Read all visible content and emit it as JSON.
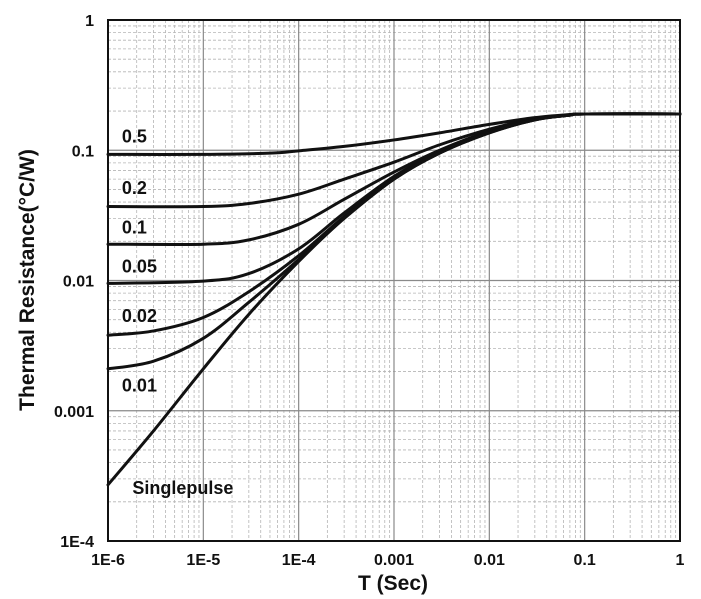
{
  "chart_data": {
    "type": "line",
    "title": "",
    "xlabel": "T (Sec)",
    "ylabel": "Thermal Resistance(°C/W)",
    "x_scale": "log",
    "y_scale": "log",
    "xlim": [
      1e-06,
      1
    ],
    "ylim": [
      0.0001,
      1
    ],
    "grid": true,
    "legend": "none",
    "x_ticks": [
      {
        "value": 1e-06,
        "label": "1E-6"
      },
      {
        "value": 1e-05,
        "label": "1E-5"
      },
      {
        "value": 0.0001,
        "label": "1E-4"
      },
      {
        "value": 0.001,
        "label": "0.001"
      },
      {
        "value": 0.01,
        "label": "0.01"
      },
      {
        "value": 0.1,
        "label": "0.1"
      },
      {
        "value": 1,
        "label": "1"
      }
    ],
    "y_ticks": [
      {
        "value": 0.0001,
        "label": "1E-4"
      },
      {
        "value": 0.001,
        "label": "0.001"
      },
      {
        "value": 0.01,
        "label": "0.01"
      },
      {
        "value": 0.1,
        "label": "0.1"
      },
      {
        "value": 1,
        "label": "1"
      }
    ],
    "line_color": "#111111",
    "series": [
      {
        "name": "0.5",
        "label_at": {
          "x": 1.4e-06,
          "y": 0.115
        },
        "x": [
          1e-06,
          1e-05,
          5e-05,
          0.0001,
          0.0003,
          0.001,
          0.003,
          0.01,
          0.03,
          0.07,
          0.1,
          1
        ],
        "y": [
          0.093,
          0.093,
          0.095,
          0.099,
          0.107,
          0.12,
          0.136,
          0.158,
          0.178,
          0.188,
          0.19,
          0.19
        ]
      },
      {
        "name": "0.2",
        "label_at": {
          "x": 1.4e-06,
          "y": 0.046
        },
        "x": [
          1e-06,
          1e-05,
          3e-05,
          0.0001,
          0.0003,
          0.001,
          0.003,
          0.01,
          0.03,
          0.07,
          0.1,
          1
        ],
        "y": [
          0.037,
          0.037,
          0.039,
          0.046,
          0.06,
          0.081,
          0.11,
          0.145,
          0.175,
          0.187,
          0.19,
          0.19
        ]
      },
      {
        "name": "0.1",
        "label_at": {
          "x": 1.4e-06,
          "y": 0.023
        },
        "x": [
          1e-06,
          1e-05,
          3e-05,
          0.0001,
          0.0003,
          0.001,
          0.003,
          0.01,
          0.03,
          0.07,
          0.1,
          1
        ],
        "y": [
          0.019,
          0.019,
          0.0205,
          0.027,
          0.042,
          0.068,
          0.1,
          0.14,
          0.173,
          0.187,
          0.19,
          0.19
        ]
      },
      {
        "name": "0.05",
        "label_at": {
          "x": 1.4e-06,
          "y": 0.0115
        },
        "x": [
          1e-06,
          1e-05,
          3e-05,
          0.0001,
          0.0003,
          0.001,
          0.003,
          0.01,
          0.03,
          0.07,
          0.1,
          1
        ],
        "y": [
          0.0095,
          0.0099,
          0.0113,
          0.0175,
          0.033,
          0.063,
          0.097,
          0.138,
          0.172,
          0.186,
          0.19,
          0.19
        ]
      },
      {
        "name": "0.02",
        "label_at": {
          "x": 1.4e-06,
          "y": 0.0048
        },
        "x": [
          1e-06,
          3e-06,
          1e-05,
          3e-05,
          0.0001,
          0.0003,
          0.001,
          0.003,
          0.01,
          0.03,
          0.07,
          0.1,
          1
        ],
        "y": [
          0.0038,
          0.0041,
          0.0052,
          0.0082,
          0.0155,
          0.031,
          0.061,
          0.096,
          0.137,
          0.172,
          0.186,
          0.19,
          0.19
        ]
      },
      {
        "name": "0.01",
        "label_at": {
          "x": 1.4e-06,
          "y": 0.0014
        },
        "x": [
          1e-06,
          3e-06,
          1e-05,
          3e-05,
          0.0001,
          0.0003,
          0.001,
          0.003,
          0.01,
          0.03,
          0.07,
          0.1,
          1
        ],
        "y": [
          0.0021,
          0.0024,
          0.0036,
          0.0068,
          0.0145,
          0.03,
          0.06,
          0.095,
          0.136,
          0.171,
          0.186,
          0.19,
          0.19
        ]
      },
      {
        "name": "Singlepulse",
        "label_at": {
          "x": 1.8e-06,
          "y": 0.00023
        },
        "x": [
          1e-06,
          3e-06,
          1e-05,
          3e-05,
          0.0001,
          0.0003,
          0.001,
          0.003,
          0.01,
          0.03,
          0.07,
          0.1,
          1
        ],
        "y": [
          0.00027,
          0.0007,
          0.0021,
          0.0055,
          0.014,
          0.03,
          0.06,
          0.095,
          0.136,
          0.171,
          0.186,
          0.19,
          0.19
        ]
      }
    ]
  }
}
